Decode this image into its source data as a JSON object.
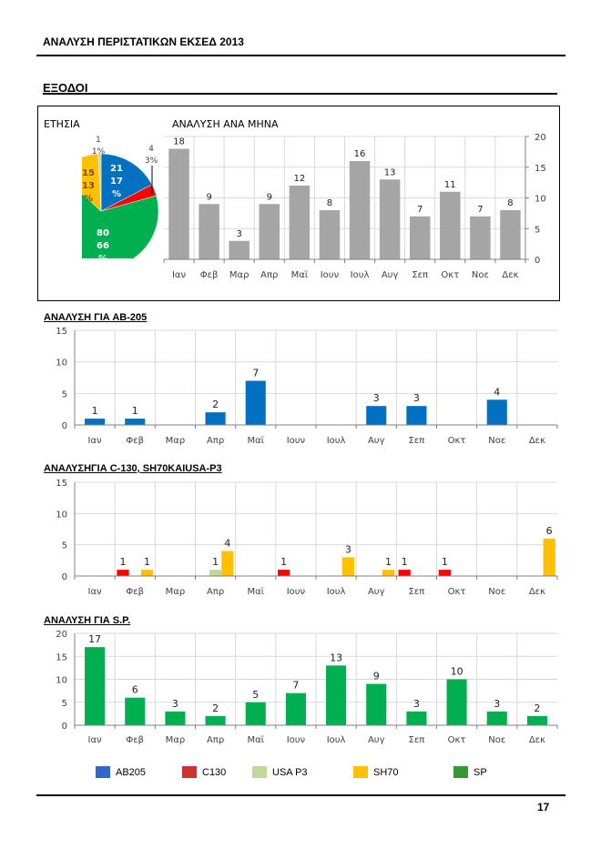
{
  "header": {
    "title": "ΑΝΑΛΥΣΗ ΠΕΡΙΣΤΑΤΙΚΩΝ ΕΚΣΕΔ 2013"
  },
  "section": {
    "title": "ΕΞΟΔΟΙ"
  },
  "footer": {
    "page_number": "17"
  },
  "legend": [
    {
      "name": "AB205",
      "color": "#3366cc"
    },
    {
      "name": "C130",
      "color": "#cc3333"
    },
    {
      "name": "USA P3",
      "color": "#c3d69b"
    },
    {
      "name": "SH70",
      "color": "#ffc000"
    },
    {
      "name": "SP",
      "color": "#339933"
    }
  ],
  "chart_data": [
    {
      "id": "annual-pie",
      "type": "pie",
      "title": "ΕΤΗΣΙΑ",
      "slices": [
        {
          "name": "AB205",
          "value": 21,
          "percent": "17%",
          "color": "#0070c0"
        },
        {
          "name": "C130",
          "value": 4,
          "percent": "3%",
          "color": "#ff0000"
        },
        {
          "name": "SP",
          "value": 80,
          "percent": "66%",
          "color": "#00b050"
        },
        {
          "name": "SH70",
          "value": 15,
          "percent": "13%",
          "color": "#ffc000"
        },
        {
          "name": "USA P3",
          "value": 1,
          "percent": "1%",
          "color": "#c3d69b"
        }
      ]
    },
    {
      "id": "monthly-total",
      "type": "bar",
      "title": "ΑΝΑΛΥΣΗ ΑΝΑ ΜΗΝΑ",
      "categories": [
        "Ιαν",
        "Φεβ",
        "Μαρ",
        "Απρ",
        "Μαϊ",
        "Ιουν",
        "Ιουλ",
        "Αυγ",
        "Σεπ",
        "Οκτ",
        "Νοε",
        "Δεκ"
      ],
      "values": [
        18,
        9,
        3,
        9,
        12,
        8,
        16,
        13,
        7,
        11,
        7,
        8
      ],
      "color": "#a5a5a5",
      "ylim": [
        0,
        20
      ],
      "yticks": [
        0,
        5,
        10,
        15,
        20
      ],
      "yaxis_side": "right",
      "grid": true
    },
    {
      "id": "ab205",
      "type": "bar",
      "title": "ΑΝΑΛΥΣΗ ΓΙΑ  ΑΒ-205",
      "categories": [
        "Ιαν",
        "Φεβ",
        "Μαρ",
        "Απρ",
        "Μαϊ",
        "Ιουν",
        "Ιουλ",
        "Αυγ",
        "Σεπ",
        "Οκτ",
        "Νοε",
        "Δεκ"
      ],
      "values": [
        1,
        1,
        0,
        2,
        7,
        0,
        0,
        3,
        3,
        0,
        4,
        0
      ],
      "color": "#0070c0",
      "ylim": [
        0,
        15
      ],
      "yticks": [
        0,
        5,
        10,
        15
      ],
      "grid": true
    },
    {
      "id": "c130-sh70-usap3",
      "type": "bar",
      "title": "ΑΝΑΛΥΣΗΓΙΑ  C-130, SH70KAIUSA-P3",
      "categories": [
        "Ιαν",
        "Φεβ",
        "Μαρ",
        "Απρ",
        "Μαϊ",
        "Ιουν",
        "Ιουλ",
        "Αυγ",
        "Σεπ",
        "Οκτ",
        "Νοε",
        "Δεκ"
      ],
      "series": [
        {
          "name": "C130",
          "color": "#ff0000",
          "values": [
            0,
            1,
            0,
            0,
            0,
            1,
            0,
            0,
            1,
            1,
            0,
            0
          ]
        },
        {
          "name": "USA P3",
          "color": "#c3d69b",
          "values": [
            0,
            0,
            0,
            1,
            0,
            0,
            0,
            0,
            0,
            0,
            0,
            0
          ]
        },
        {
          "name": "SH70",
          "color": "#ffc000",
          "values": [
            0,
            1,
            0,
            4,
            0,
            0,
            3,
            1,
            0,
            0,
            0,
            6
          ]
        }
      ],
      "ylim": [
        0,
        15
      ],
      "yticks": [
        0,
        5,
        10,
        15
      ],
      "grid": true
    },
    {
      "id": "sp",
      "type": "bar",
      "title": "ΑΝΑΛΥΣΗ ΓΙΑ  S.P.",
      "categories": [
        "Ιαν",
        "Φεβ",
        "Μαρ",
        "Απρ",
        "Μαϊ",
        "Ιουν",
        "Ιουλ",
        "Αυγ",
        "Σεπ",
        "Οκτ",
        "Νοε",
        "Δεκ"
      ],
      "values": [
        17,
        6,
        3,
        2,
        5,
        7,
        13,
        9,
        3,
        10,
        3,
        2
      ],
      "color": "#00b050",
      "ylim": [
        0,
        20
      ],
      "yticks": [
        0,
        5,
        10,
        15,
        20
      ],
      "grid": true
    }
  ]
}
